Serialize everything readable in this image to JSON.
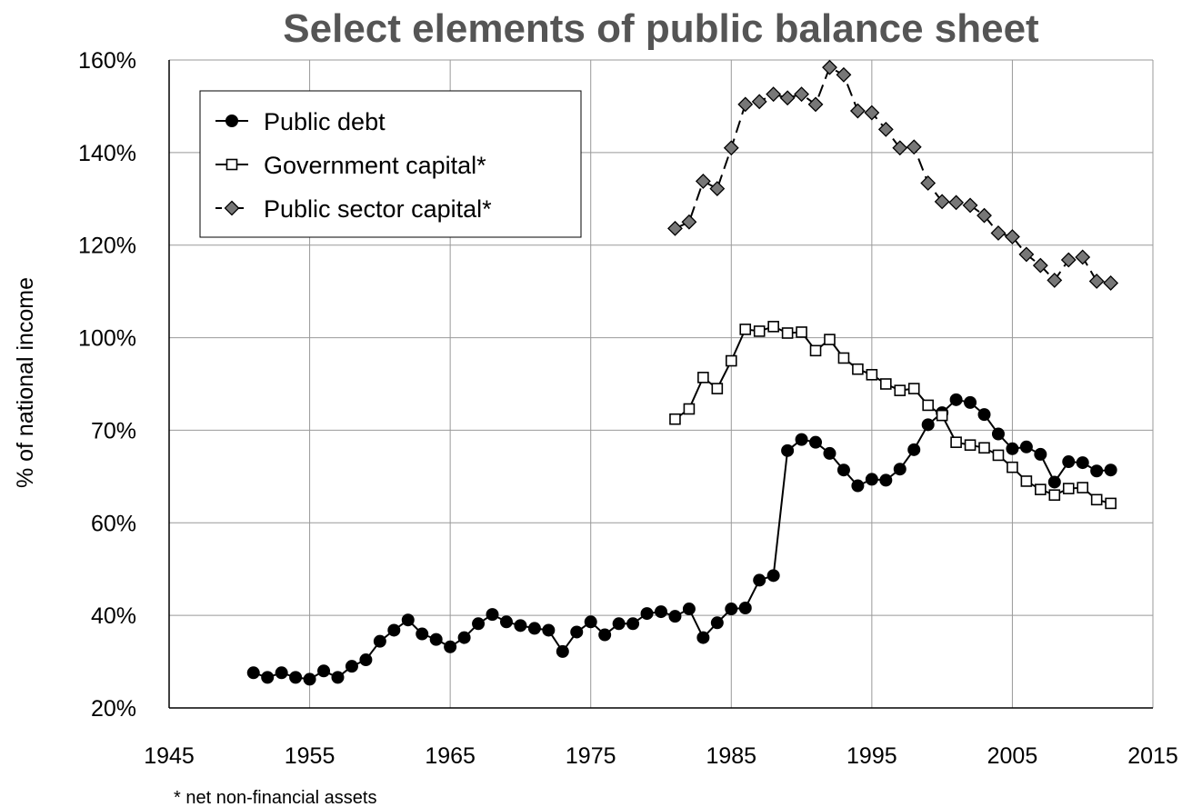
{
  "chart_data": {
    "type": "line",
    "title": "Select elements of public balance sheet",
    "xlabel": "",
    "ylabel": "% of national income",
    "footnote": "* net non-financial assets",
    "xlim": [
      1945,
      2015
    ],
    "x_ticks": [
      1945,
      1955,
      1965,
      1975,
      1985,
      1995,
      2005,
      2015
    ],
    "y_ticks": [
      {
        "value": 0,
        "label": "20%"
      },
      {
        "value": 1,
        "label": "40%"
      },
      {
        "value": 2,
        "label": "60%"
      },
      {
        "value": 3,
        "label": "70%"
      },
      {
        "value": 4,
        "label": "100%"
      },
      {
        "value": 5,
        "label": "120%"
      },
      {
        "value": 6,
        "label": "140%"
      },
      {
        "value": 7,
        "label": "160%"
      }
    ],
    "y_scale_note": "tick labels are printed unevenly; values are expressed in tick-index units",
    "grid": true,
    "legend_position": "top-left",
    "series": [
      {
        "name": "Public debt",
        "marker": "circle",
        "fill": "#000000",
        "dash": "none",
        "x": [
          1951,
          1952,
          1953,
          1954,
          1955,
          1956,
          1957,
          1958,
          1959,
          1960,
          1961,
          1962,
          1963,
          1964,
          1965,
          1966,
          1967,
          1968,
          1969,
          1970,
          1971,
          1972,
          1973,
          1974,
          1975,
          1976,
          1977,
          1978,
          1979,
          1980,
          1981,
          1982,
          1983,
          1984,
          1985,
          1986,
          1987,
          1988,
          1989,
          1990,
          1991,
          1992,
          1993,
          1994,
          1995,
          1996,
          1997,
          1998,
          1999,
          2000,
          2001,
          2002,
          2003,
          2004,
          2005,
          2006,
          2007,
          2008,
          2009,
          2010,
          2011,
          2012
        ],
        "y": [
          0.38,
          0.33,
          0.38,
          0.33,
          0.31,
          0.4,
          0.33,
          0.45,
          0.52,
          0.72,
          0.84,
          0.95,
          0.8,
          0.74,
          0.66,
          0.76,
          0.91,
          1.01,
          0.93,
          0.89,
          0.86,
          0.84,
          0.61,
          0.82,
          0.93,
          0.79,
          0.91,
          0.91,
          1.02,
          1.04,
          0.99,
          1.07,
          0.76,
          0.92,
          1.07,
          1.08,
          1.38,
          1.43,
          2.78,
          2.9,
          2.87,
          2.75,
          2.57,
          2.4,
          2.47,
          2.46,
          2.58,
          2.79,
          3.06,
          3.19,
          3.33,
          3.3,
          3.17,
          2.96,
          2.8,
          2.82,
          2.74,
          2.44,
          2.66,
          2.65,
          2.56,
          2.57
        ]
      },
      {
        "name": "Government capital*",
        "marker": "square",
        "fill": "#ffffff",
        "dash": "none",
        "x": [
          1981,
          1982,
          1983,
          1984,
          1985,
          1986,
          1987,
          1988,
          1989,
          1990,
          1991,
          1992,
          1993,
          1994,
          1995,
          1996,
          1997,
          1998,
          1999,
          2000,
          2001,
          2002,
          2003,
          2004,
          2005,
          2006,
          2007,
          2008,
          2009,
          2010,
          2011,
          2012
        ],
        "y": [
          3.12,
          3.23,
          3.57,
          3.45,
          3.75,
          4.09,
          4.07,
          4.12,
          4.05,
          4.06,
          3.86,
          3.98,
          3.78,
          3.66,
          3.6,
          3.5,
          3.43,
          3.45,
          3.27,
          3.16,
          2.87,
          2.84,
          2.81,
          2.73,
          2.6,
          2.45,
          2.36,
          2.3,
          2.37,
          2.38,
          2.25,
          2.21
        ]
      },
      {
        "name": "Public sector capital*",
        "marker": "diamond",
        "fill": "#777777",
        "dash": "dashed",
        "x": [
          1981,
          1982,
          1983,
          1984,
          1985,
          1986,
          1987,
          1988,
          1989,
          1990,
          1991,
          1992,
          1993,
          1994,
          1995,
          1996,
          1997,
          1998,
          1999,
          2000,
          2001,
          2002,
          2003,
          2004,
          2005,
          2006,
          2007,
          2008,
          2009,
          2010,
          2011,
          2012
        ],
        "y": [
          5.18,
          5.25,
          5.69,
          5.61,
          6.05,
          6.52,
          6.55,
          6.63,
          6.59,
          6.63,
          6.52,
          6.92,
          6.84,
          6.45,
          6.43,
          6.25,
          6.05,
          6.06,
          5.67,
          5.47,
          5.46,
          5.43,
          5.32,
          5.13,
          5.09,
          4.9,
          4.78,
          4.62,
          4.84,
          4.87,
          4.61,
          4.59
        ]
      }
    ]
  }
}
